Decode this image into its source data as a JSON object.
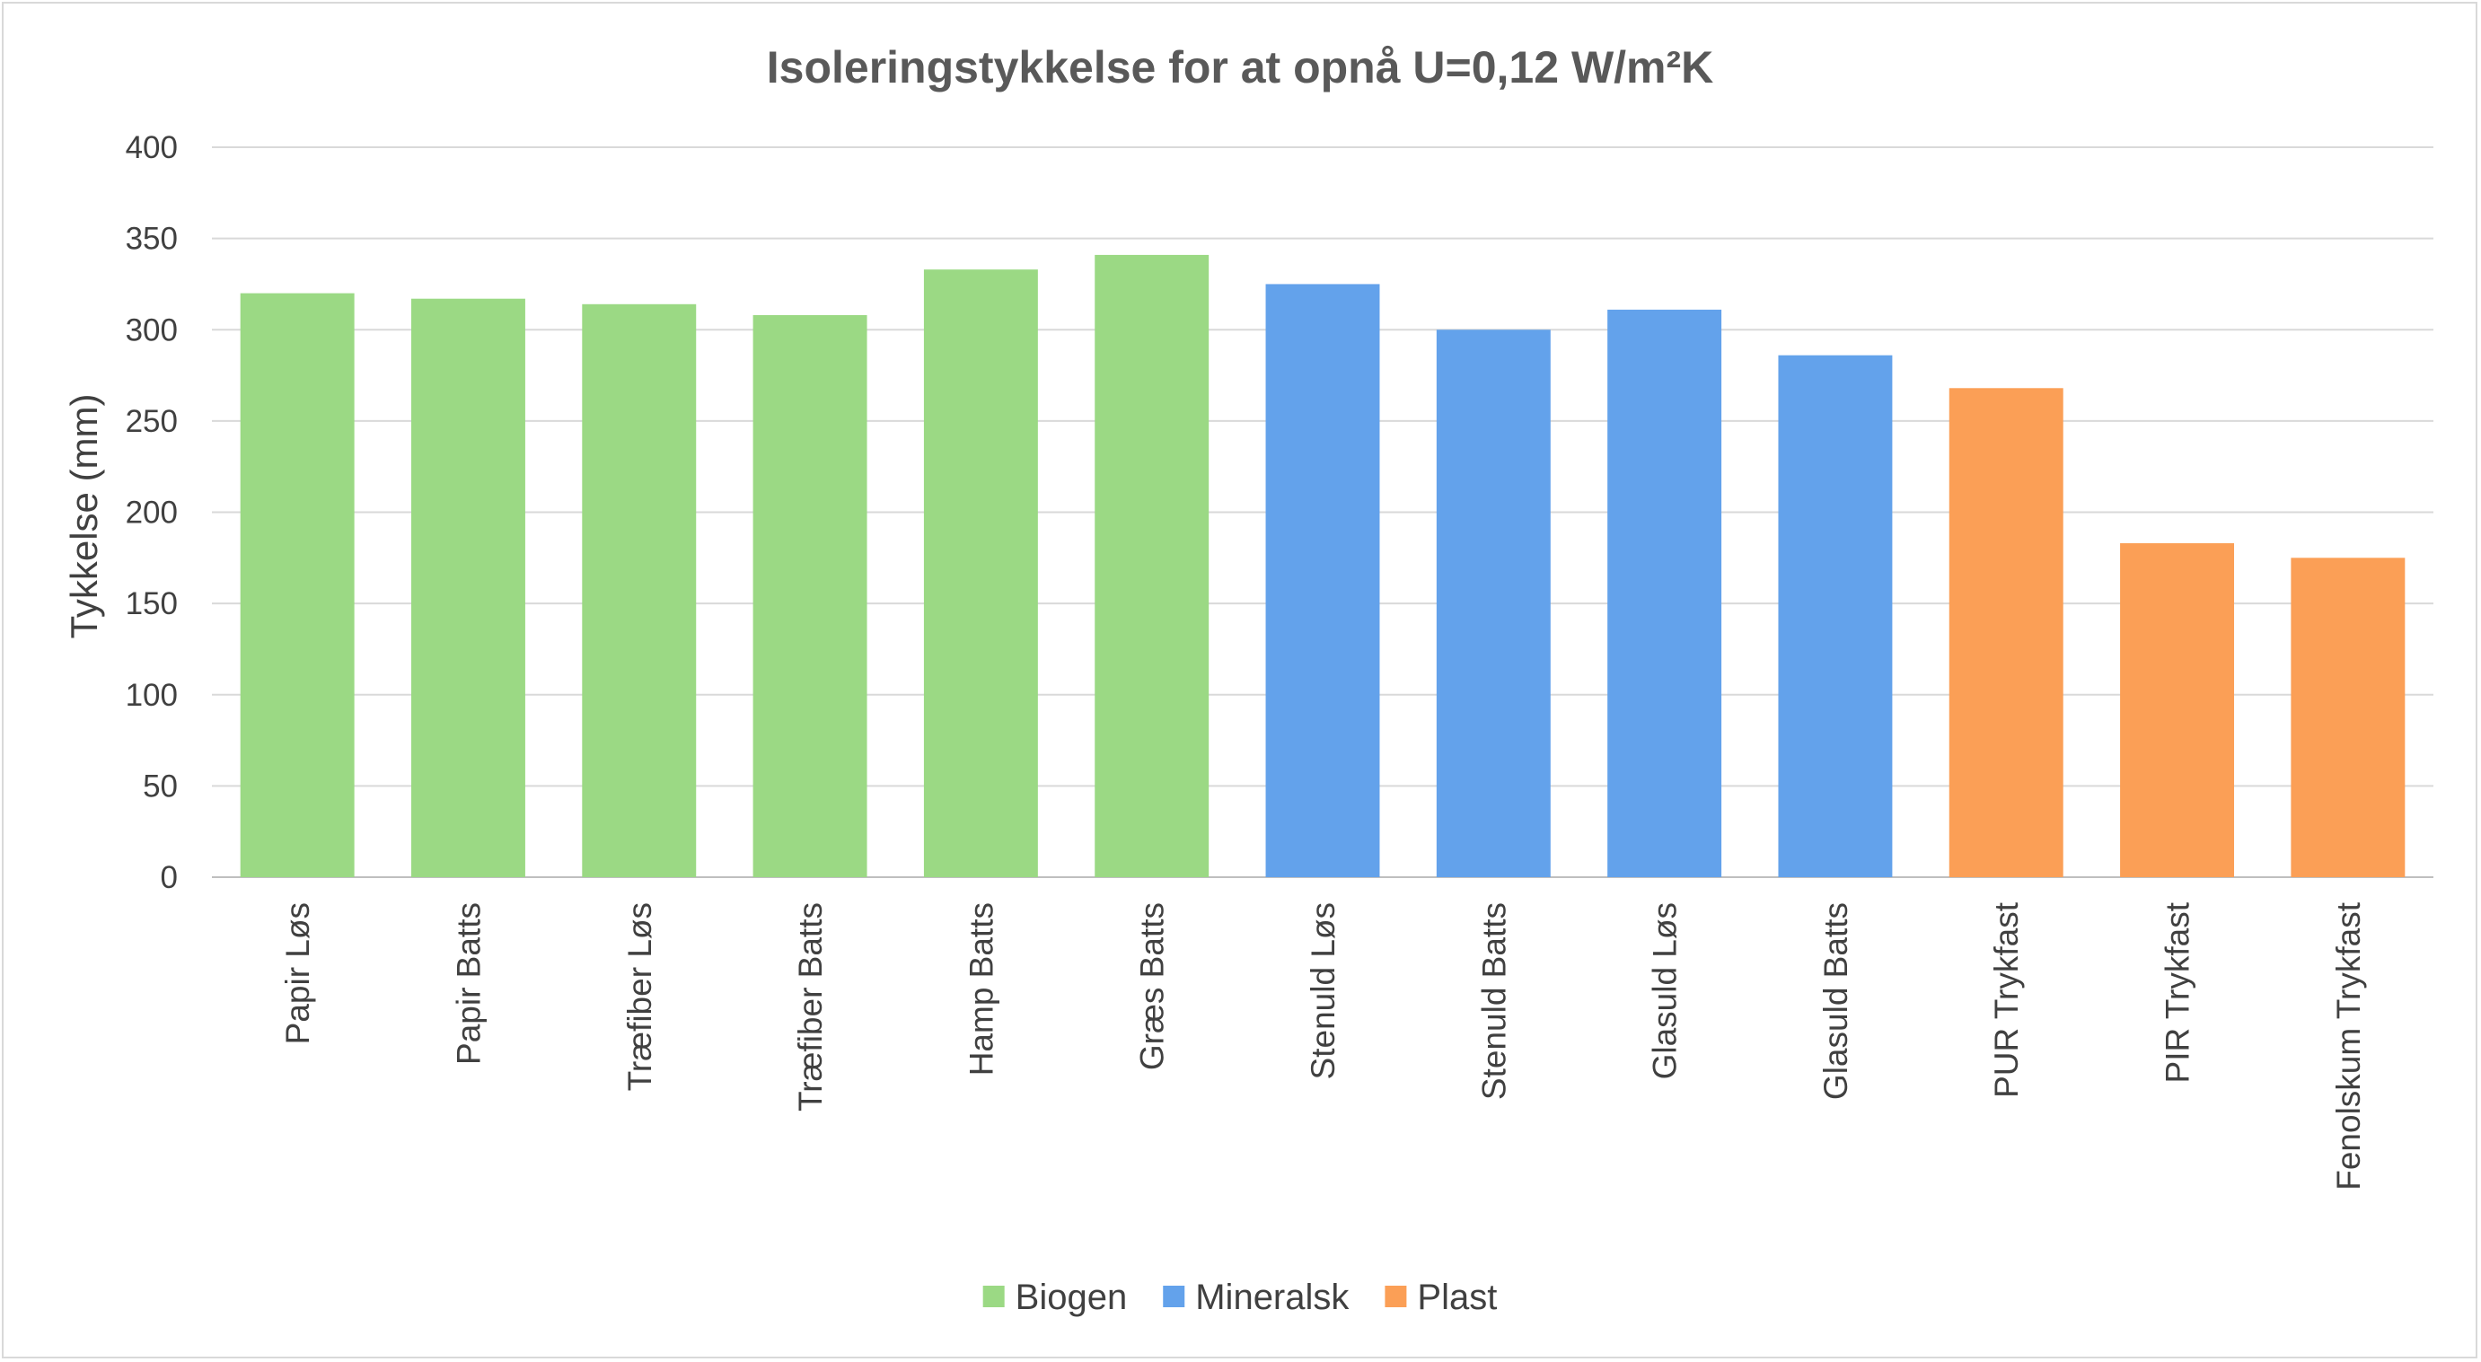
{
  "chart_data": {
    "type": "bar",
    "title": "Isoleringstykkelse for at opnå U=0,12 W/m²K",
    "xlabel": "",
    "ylabel": "Tykkelse (mm)",
    "ylim": [
      0,
      400
    ],
    "yticks": [
      0,
      50,
      100,
      150,
      200,
      250,
      300,
      350,
      400
    ],
    "grid": true,
    "legend_position": "bottom",
    "categories": [
      "Papir Løs",
      "Papir Batts",
      "Træfiber Løs",
      "Træfiber Batts",
      "Hamp Batts",
      "Græs Batts",
      "Stenuld Løs",
      "Stenuld Batts",
      "Glasuld Løs",
      "Glasuld Batts",
      "PUR Trykfast",
      "PIR Trykfast",
      "Fenolskum Trykfast"
    ],
    "values": [
      320,
      317,
      314,
      308,
      333,
      341,
      325,
      300,
      311,
      286,
      268,
      183,
      175
    ],
    "groups": [
      "Biogen",
      "Biogen",
      "Biogen",
      "Biogen",
      "Biogen",
      "Biogen",
      "Mineralsk",
      "Mineralsk",
      "Mineralsk",
      "Mineralsk",
      "Plast",
      "Plast",
      "Plast"
    ],
    "legend": [
      {
        "name": "Biogen",
        "color": "#9bd984"
      },
      {
        "name": "Mineralsk",
        "color": "#63a2eb"
      },
      {
        "name": "Plast",
        "color": "#fb9f56"
      }
    ],
    "colors": {
      "grid": "#d9d9d9",
      "axis": "#bfbfbf"
    }
  }
}
